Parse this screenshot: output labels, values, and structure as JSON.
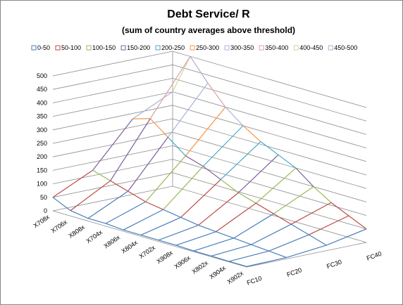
{
  "chart_data": {
    "type": "surface",
    "title": "Debt Service/ R",
    "subtitle": "(sum of country averages above threshold)",
    "bands": [
      {
        "name": "0-50",
        "from": 0,
        "to": 50,
        "color": "#4a7ebb"
      },
      {
        "name": "50-100",
        "from": 50,
        "to": 100,
        "color": "#be4b48"
      },
      {
        "name": "100-150",
        "from": 100,
        "to": 150,
        "color": "#98b954"
      },
      {
        "name": "150-200",
        "from": 150,
        "to": 200,
        "color": "#7d60a0"
      },
      {
        "name": "200-250",
        "from": 200,
        "to": 250,
        "color": "#46aac5"
      },
      {
        "name": "250-300",
        "from": 250,
        "to": 300,
        "color": "#f79646"
      },
      {
        "name": "300-350",
        "from": 300,
        "to": 350,
        "color": "#a5b6d9"
      },
      {
        "name": "350-400",
        "from": 350,
        "to": 400,
        "color": "#e0a0a0"
      },
      {
        "name": "400-450",
        "from": 400,
        "to": 450,
        "color": "#c7d9a0"
      },
      {
        "name": "450-500",
        "from": 450,
        "to": 500,
        "color": "#b7a9cc"
      }
    ],
    "categories": [
      "X708x",
      "X706x",
      "X808x",
      "X704x",
      "X806x",
      "X804x",
      "X702x",
      "X908x",
      "X906x",
      "X802x",
      "X904x",
      "X902x"
    ],
    "series": [
      {
        "name": "FC10",
        "values": [
          50,
          20,
          10,
          10,
          5,
          5,
          5,
          5,
          3,
          3,
          2,
          2
        ]
      },
      {
        "name": "FC20",
        "values": [
          120,
          100,
          80,
          60,
          50,
          40,
          30,
          25,
          20,
          15,
          10,
          5
        ]
      },
      {
        "name": "FC30",
        "values": [
          280,
          300,
          250,
          200,
          180,
          150,
          120,
          100,
          80,
          60,
          40,
          20
        ]
      },
      {
        "name": "FC40",
        "values": [
          350,
          500,
          420,
          350,
          300,
          260,
          230,
          200,
          150,
          110,
          80,
          50
        ]
      }
    ],
    "zlim": [
      0,
      500
    ],
    "zticks": [
      0,
      50,
      100,
      150,
      200,
      250,
      300,
      350,
      400,
      450,
      500
    ]
  }
}
